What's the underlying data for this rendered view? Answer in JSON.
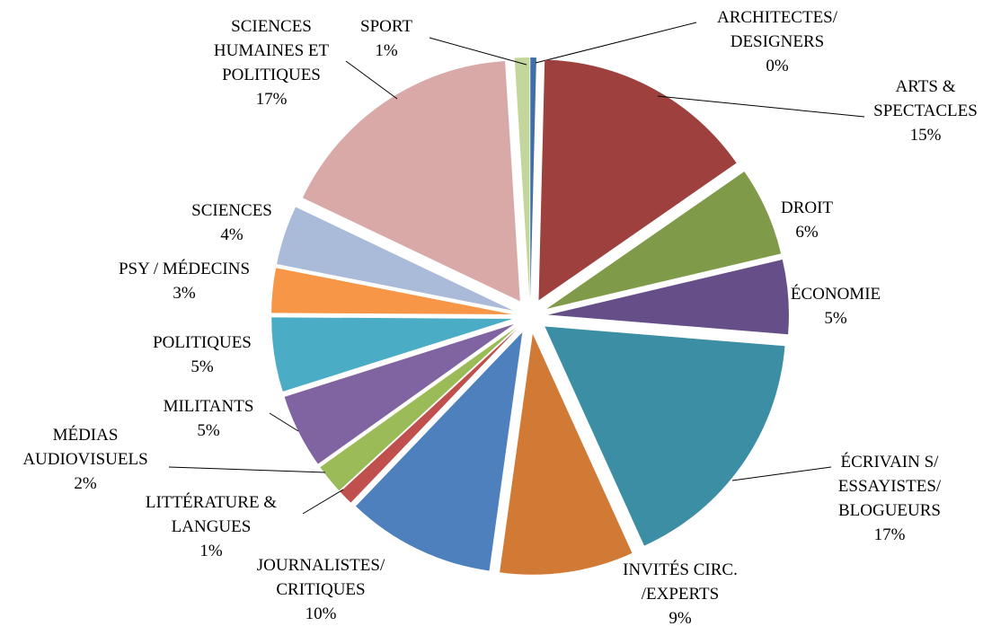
{
  "chart_data": {
    "type": "pie",
    "categories": [
      [
        "ARCHITECTES/",
        "DESIGNERS"
      ],
      [
        "ARTS &",
        "SPECTACLES"
      ],
      [
        "DROIT"
      ],
      [
        "ÉCONOMIE"
      ],
      [
        "ÉCRIVAIN S/",
        "ESSAYISTES/",
        "BLOGUEURS"
      ],
      [
        "INVITÉS CIRC.",
        "/EXPERTS"
      ],
      [
        "JOURNALISTES/",
        "CRITIQUES"
      ],
      [
        "LITTÉRATURE &",
        "LANGUES"
      ],
      [
        "MÉDIAS",
        "AUDIOVISUELS"
      ],
      [
        "MILITANTS"
      ],
      [
        "POLITIQUES"
      ],
      [
        "PSY / MÉDECINS"
      ],
      [
        "SCIENCES"
      ],
      [
        "SCIENCES",
        "HUMAINES ET",
        "POLITIQUES"
      ],
      [
        "SPORT"
      ]
    ],
    "values": [
      0.4,
      15,
      6,
      5,
      17,
      9,
      10,
      1,
      2,
      5,
      5,
      3,
      4,
      17,
      1
    ],
    "value_labels": [
      "0%",
      "15%",
      "6%",
      "5%",
      "17%",
      "9%",
      "10%",
      "1%",
      "2%",
      "5%",
      "5%",
      "3%",
      "4%",
      "17%",
      "1%"
    ],
    "colors": [
      "#3f6ea8",
      "#9e413e",
      "#7f9a48",
      "#664f88",
      "#3b8ea4",
      "#d07a36",
      "#4d80bd",
      "#c0504d",
      "#9bbb59",
      "#8064a2",
      "#4bacc6",
      "#f79646",
      "#a9bbd8",
      "#d9a9a8",
      "#c3d69b"
    ]
  }
}
